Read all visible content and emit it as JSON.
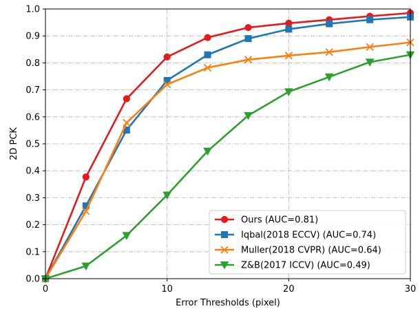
{
  "chart_data": {
    "type": "line",
    "title": "",
    "xlabel": "Error Thresholds (pixel)",
    "ylabel": "2D PCK",
    "xlim": [
      0,
      30
    ],
    "ylim": [
      0,
      1.0
    ],
    "xticks": [
      0,
      10,
      20,
      30
    ],
    "yticks": [
      0.0,
      0.1,
      0.2,
      0.3,
      0.4,
      0.5,
      0.6,
      0.7,
      0.8,
      0.9,
      1.0
    ],
    "ytick_labels": [
      "0.0",
      "0.1",
      "0.2",
      "0.3",
      "0.4",
      "0.5",
      "0.6",
      "0.7",
      "0.8",
      "0.9",
      "1.0"
    ],
    "xtick_labels": [
      "0",
      "10",
      "20",
      "30"
    ],
    "grid": true,
    "legend_position": "bottom-right",
    "x": [
      0,
      3.33,
      6.67,
      10,
      13.33,
      16.67,
      20,
      23.33,
      26.67,
      30
    ],
    "series": [
      {
        "name": "Ours (AUC=0.81)",
        "color": "#e41a1c",
        "marker": "circle",
        "values": [
          0.0,
          0.377,
          0.667,
          0.822,
          0.894,
          0.931,
          0.947,
          0.96,
          0.973,
          0.985
        ]
      },
      {
        "name": "Iqbal(2018 ECCV) (AUC=0.74)",
        "color": "#1f77b4",
        "marker": "square",
        "values": [
          0.0,
          0.27,
          0.551,
          0.735,
          0.83,
          0.89,
          0.925,
          0.945,
          0.96,
          0.97
        ]
      },
      {
        "name": "Muller(2018 CVPR) (AUC=0.64)",
        "color": "#ff7f0e",
        "marker": "x",
        "values": [
          0.0,
          0.25,
          0.578,
          0.72,
          0.782,
          0.812,
          0.827,
          0.84,
          0.859,
          0.876
        ]
      },
      {
        "name": "Z&B(2017 ICCV) (AUC=0.49)",
        "color": "#2ca02c",
        "marker": "triangle-down",
        "values": [
          0.0,
          0.047,
          0.16,
          0.31,
          0.473,
          0.605,
          0.693,
          0.748,
          0.803,
          0.83
        ]
      }
    ]
  }
}
